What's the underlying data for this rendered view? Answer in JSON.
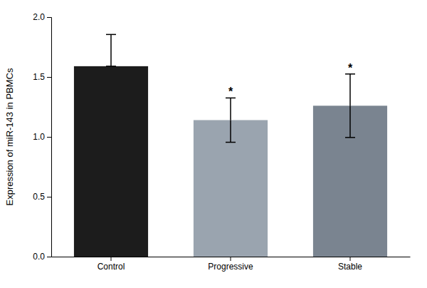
{
  "chart_data": {
    "type": "bar",
    "ylabel": "Expression of miR-143 in PBMCs",
    "categories": [
      "Control",
      "Progressive",
      "Stable"
    ],
    "values": [
      1.59,
      1.14,
      1.26
    ],
    "error_up": [
      0.265,
      0.185,
      0.265
    ],
    "error_down": [
      0.0,
      0.185,
      0.265
    ],
    "annotations": [
      null,
      "*",
      "*"
    ],
    "colors": [
      "#1c1c1c",
      "#9aa4af",
      "#7a8490"
    ],
    "ylim": [
      0.0,
      2.0
    ],
    "yticks": [
      {
        "value": 0.0,
        "label": "0.0"
      },
      0.5,
      {
        "value": 1.0,
        "label": "1.0"
      },
      1.5,
      {
        "value": 2.0,
        "label": "2.0"
      }
    ],
    "grid": false
  }
}
